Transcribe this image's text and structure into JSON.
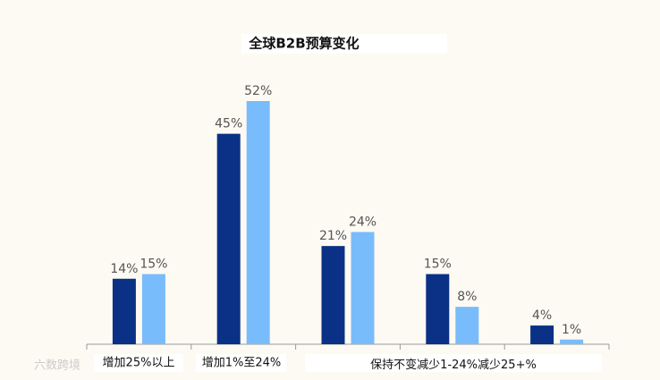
{
  "chart_data": {
    "type": "bar",
    "title": "全球B2B预算变化",
    "categories": [
      "增加25%以上",
      "增加1%至24%",
      "保持不变",
      "减少1-24%",
      "减少25+%"
    ],
    "series": [
      {
        "color": "#0a3185",
        "values": [
          14,
          45,
          21,
          15,
          4
        ],
        "value_labels": [
          "14%",
          "45%",
          "21%",
          "15%",
          "4%"
        ]
      },
      {
        "color": "#79bcfb",
        "values": [
          15,
          52,
          24,
          8,
          1
        ],
        "value_labels": [
          "15%",
          "52%",
          "24%",
          "8%",
          "1%"
        ]
      }
    ],
    "ylim": [
      0,
      52
    ],
    "watermark": "六数跨境"
  }
}
